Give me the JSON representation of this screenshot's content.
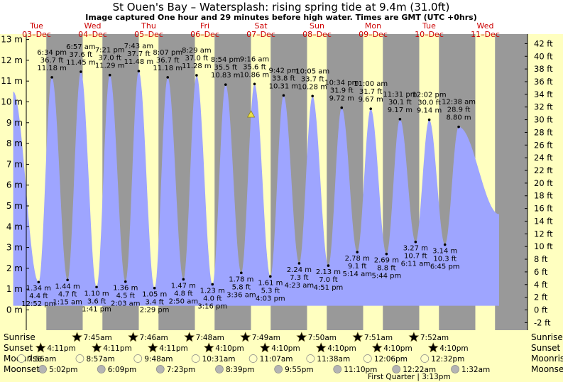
{
  "chart_data": {
    "type": "area",
    "title": "St Ouen's Bay – Watersplash: rising  spring tide at 9.4m (31.0ft)",
    "subtitle": "Image captured One hour and 29 minutes before high water. Times are GMT (UTC +0hrs)",
    "ylabel_left_unit": "m",
    "ylabel_right_unit": "ft",
    "ylim_m": [
      -1,
      13
    ],
    "left_ticks": [
      "0 m",
      "1 m",
      "2 m",
      "3 m",
      "4 m",
      "5 m",
      "6 m",
      "7 m",
      "8 m",
      "9 m",
      "10 m",
      "11 m",
      "12 m",
      "13 m"
    ],
    "right_ticks": [
      "-2 ft",
      "0 ft",
      "2 ft",
      "4 ft",
      "6 ft",
      "8 ft",
      "10 ft",
      "12 ft",
      "14 ft",
      "16 ft",
      "18 ft",
      "20 ft",
      "22 ft",
      "24 ft",
      "26 ft",
      "28 ft",
      "30 ft",
      "32 ft",
      "34 ft",
      "36 ft",
      "38 ft",
      "40 ft",
      "42 ft"
    ],
    "days": [
      {
        "name": "Tue",
        "date": "03–Dec"
      },
      {
        "name": "Wed",
        "date": "04–Dec"
      },
      {
        "name": "Thu",
        "date": "05–Dec"
      },
      {
        "name": "Fri",
        "date": "06–Dec"
      },
      {
        "name": "Sat",
        "date": "07–Dec"
      },
      {
        "name": "Sun",
        "date": "08–Dec"
      },
      {
        "name": "Mon",
        "date": "09–Dec"
      },
      {
        "name": "Tue",
        "date": "10–Dec"
      },
      {
        "name": "Wed",
        "date": "11–Dec"
      }
    ],
    "tides": [
      {
        "type": "high",
        "time": "6:34 pm",
        "ft": "36.7 ft",
        "m": "11.18 m",
        "value": 11.18
      },
      {
        "type": "high",
        "time": "6:57 am",
        "ft": "37.6 ft",
        "m": "11.45 m",
        "value": 11.45
      },
      {
        "type": "high",
        "time": "7:21 pm",
        "ft": "37.0 ft",
        "m": "11.29 m",
        "value": 11.29
      },
      {
        "type": "high",
        "time": "7:43 am",
        "ft": "37.7 ft",
        "m": "11.48 m",
        "value": 11.48
      },
      {
        "type": "high",
        "time": "8:07 pm",
        "ft": "36.7 ft",
        "m": "11.18 m",
        "value": 11.18
      },
      {
        "type": "high",
        "time": "8:29 am",
        "ft": "37.0 ft",
        "m": "11.28 m",
        "value": 11.28
      },
      {
        "type": "high",
        "time": "8:54 pm",
        "ft": "35.5 ft",
        "m": "10.83 m",
        "value": 10.83
      },
      {
        "type": "high",
        "time": "9:16 am",
        "ft": "35.6 ft",
        "m": "10.86 m",
        "value": 10.86
      },
      {
        "type": "high",
        "time": "9:42 pm",
        "ft": "33.8 ft",
        "m": "10.31 m",
        "value": 10.31
      },
      {
        "type": "high",
        "time": "10:05 am",
        "ft": "33.7 ft",
        "m": "10.28 m",
        "value": 10.28
      },
      {
        "type": "high",
        "time": "10:34 pm",
        "ft": "31.9 ft",
        "m": "9.72 m",
        "value": 9.72
      },
      {
        "type": "high",
        "time": "11:00 am",
        "ft": "31.7 ft",
        "m": "9.67 m",
        "value": 9.67
      },
      {
        "type": "high",
        "time": "11:31 pm",
        "ft": "30.1 ft",
        "m": "9.17 m",
        "value": 9.17
      },
      {
        "type": "high",
        "time": "12:02 pm",
        "ft": "30.0 ft",
        "m": "9.14 m",
        "value": 9.14
      },
      {
        "type": "high",
        "time": "12:38 am",
        "ft": "28.9 ft",
        "m": "8.80 m",
        "value": 8.8
      },
      {
        "type": "low",
        "time": "12:52 pm",
        "ft": "4.4 ft",
        "m": "1.34 m",
        "value": 1.34
      },
      {
        "type": "low",
        "time": "1:15 am",
        "ft": "4.7 ft",
        "m": "1.44 m",
        "value": 1.44
      },
      {
        "type": "low",
        "time": "1:41 pm",
        "ft": "3.6 ft",
        "m": "1.10 m",
        "value": 1.1
      },
      {
        "type": "low",
        "time": "2:03 am",
        "ft": "4.5 ft",
        "m": "1.36 m",
        "value": 1.36
      },
      {
        "type": "low",
        "time": "2:29 pm",
        "ft": "3.4 ft",
        "m": "1.05 m",
        "value": 1.05
      },
      {
        "type": "low",
        "time": "2:50 am",
        "ft": "4.8 ft",
        "m": "1.47 m",
        "value": 1.47
      },
      {
        "type": "low",
        "time": "3:16 pm",
        "ft": "4.0 ft",
        "m": "1.23 m",
        "value": 1.23
      },
      {
        "type": "low",
        "time": "3:36 am",
        "ft": "5.8 ft",
        "m": "1.78 m",
        "value": 1.78
      },
      {
        "type": "low",
        "time": "4:03 pm",
        "ft": "5.3 ft",
        "m": "1.61 m",
        "value": 1.61
      },
      {
        "type": "low",
        "time": "4:23 am",
        "ft": "7.3 ft",
        "m": "2.24 m",
        "value": 2.24
      },
      {
        "type": "low",
        "time": "4:51 pm",
        "ft": "7.0 ft",
        "m": "2.13 m",
        "value": 2.13
      },
      {
        "type": "low",
        "time": "5:14 am",
        "ft": "9.1 ft",
        "m": "2.78 m",
        "value": 2.78
      },
      {
        "type": "low",
        "time": "5:44 pm",
        "ft": "8.8 ft",
        "m": "2.69 m",
        "value": 2.69
      },
      {
        "type": "low",
        "time": "6:11 am",
        "ft": "10.7 ft",
        "m": "3.27 m",
        "value": 3.27
      },
      {
        "type": "low",
        "time": "6:45 pm",
        "ft": "10.3 ft",
        "m": "3.14 m",
        "value": 3.14
      }
    ],
    "current_level_m": 9.4,
    "bottom_labels": {
      "sunrise": "Sunrise",
      "sunset": "Sunset",
      "moonrise": "Moonrise",
      "moonset": "Moonset"
    },
    "sunrise": [
      "7:45am",
      "7:46am",
      "7:48am",
      "7:49am",
      "7:50am",
      "7:51am",
      "7:52am"
    ],
    "sunset": [
      "4:11pm",
      "4:11pm",
      "4:11pm",
      "4:10pm",
      "4:10pm",
      "4:10pm",
      "4:10pm",
      "4:10pm"
    ],
    "moonrise": [
      "7:56am",
      "8:57am",
      "9:48am",
      "10:31am",
      "11:07am",
      "11:38am",
      "12:06pm",
      "12:32pm"
    ],
    "moonset": [
      "5:02pm",
      "6:09pm",
      "7:23pm",
      "8:39pm",
      "9:55pm",
      "11:10pm",
      "12:22am",
      "1:32am"
    ],
    "moon_phase": "First Quarter | 3:13pm"
  },
  "colors": {
    "day": "#ffffc0",
    "night": "#999999",
    "water": "#9ea5ff",
    "bg": "#ffffff",
    "day_label": "#cc0000",
    "text": "#000000",
    "sun_star": "#e8c63a",
    "set_star": "#b5803e",
    "moonrise": "#ffffc8",
    "moonset": "#b4b4b4"
  }
}
